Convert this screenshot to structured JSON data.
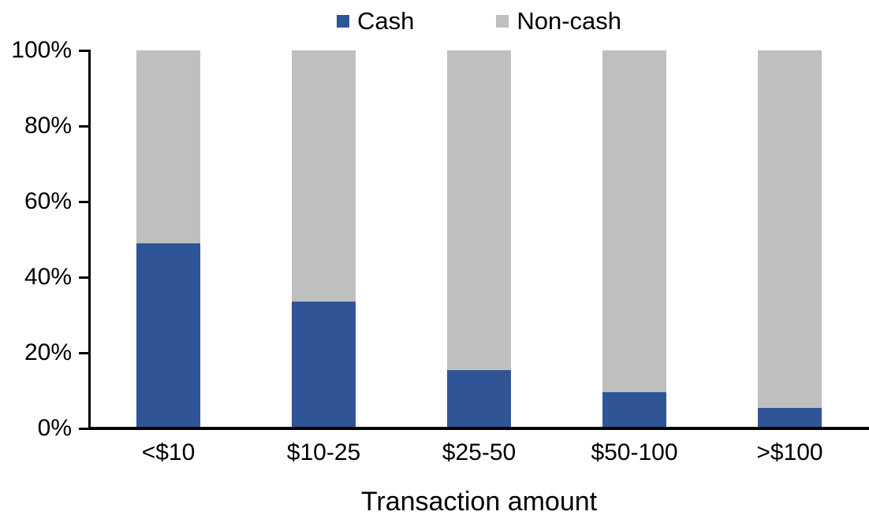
{
  "colors": {
    "cash": "#2F5597",
    "noncash": "#BFBFBF",
    "axis": "#000000",
    "background": "#FFFFFF"
  },
  "chart_data": {
    "type": "bar",
    "stacked": true,
    "percent_stacked": true,
    "title": "",
    "xlabel": "Transaction amount",
    "ylabel": "",
    "ylim": [
      0,
      100
    ],
    "grid": false,
    "legend_position": "top-center",
    "yticks": [
      "0%",
      "20%",
      "40%",
      "60%",
      "80%",
      "100%"
    ],
    "ytick_values": [
      0,
      20,
      40,
      60,
      80,
      100
    ],
    "categories": [
      "<$10",
      "$10-25",
      "$25-50",
      "$50-100",
      ">$100"
    ],
    "series": [
      {
        "name": "Cash",
        "color": "#2F5597",
        "values": [
          49,
          33.5,
          15.5,
          9.5,
          5.5
        ]
      },
      {
        "name": "Non-cash",
        "color": "#BFBFBF",
        "values": [
          51,
          66.5,
          84.5,
          90.5,
          94.5
        ]
      }
    ]
  },
  "legend": {
    "items": [
      {
        "label": "Cash",
        "color": "#2F5597"
      },
      {
        "label": "Non-cash",
        "color": "#BFBFBF"
      }
    ]
  }
}
